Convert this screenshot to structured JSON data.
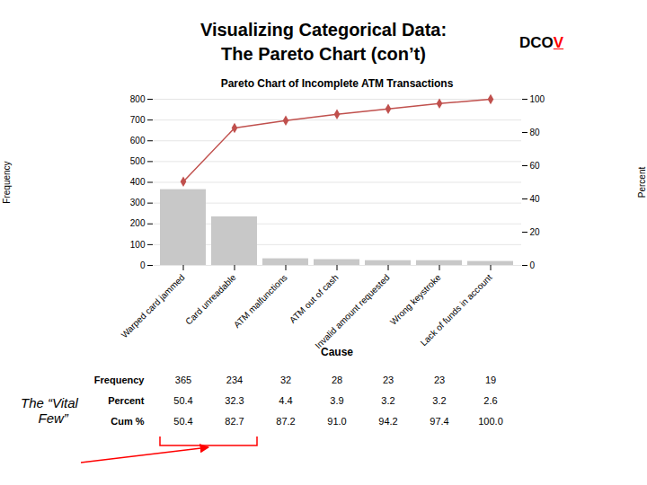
{
  "chart_data": {
    "type": "bar",
    "title": "Pareto Chart of Incomplete ATM Transactions",
    "header": [
      "Visualizing Categorical Data:",
      "The Pareto Chart (con’t)"
    ],
    "header_tag": {
      "text": "DCO",
      "highlight": "V",
      "color": "red"
    },
    "xlabel": "Cause",
    "ylabel": "Frequency",
    "y2label": "Percent",
    "categories": [
      "Warped card jammed",
      "Card unreadable",
      "ATM malfunctions",
      "ATM out of cash",
      "Invalid amount requested",
      "Wrong keystroke",
      "Lack of funds in account"
    ],
    "series": [
      {
        "type": "bar",
        "color": "#c8c8c8",
        "values": [
          365,
          234,
          32,
          28,
          23,
          23,
          19
        ]
      },
      {
        "type": "line",
        "axis": "y2",
        "color": "#c0504d",
        "marker": "diamond",
        "values": [
          50.4,
          82.7,
          87.2,
          91.0,
          94.2,
          97.4,
          100.0
        ]
      }
    ],
    "ylim": [
      0,
      800
    ],
    "yticks": [
      0,
      100,
      200,
      300,
      400,
      500,
      600,
      700,
      800
    ],
    "y2lim": [
      0,
      100
    ],
    "y2ticks": [
      0,
      20,
      40,
      60,
      80,
      100
    ],
    "grid": true,
    "table": {
      "row_labels": [
        "Frequency",
        "Percent",
        "Cum %"
      ],
      "rows": [
        [
          "365",
          "234",
          "32",
          "28",
          "23",
          "23",
          "19"
        ],
        [
          "50.4",
          "32.3",
          "4.4",
          "3.9",
          "3.2",
          "3.2",
          "2.6"
        ],
        [
          "50.4",
          "82.7",
          "87.2",
          "91.0",
          "94.2",
          "97.4",
          "100.0"
        ]
      ]
    },
    "annotations": [
      {
        "text": [
          "The “Vital",
          "  Few”"
        ],
        "categories": [
          "Warped card jammed",
          "Card unreadable"
        ],
        "color": "red"
      }
    ]
  }
}
